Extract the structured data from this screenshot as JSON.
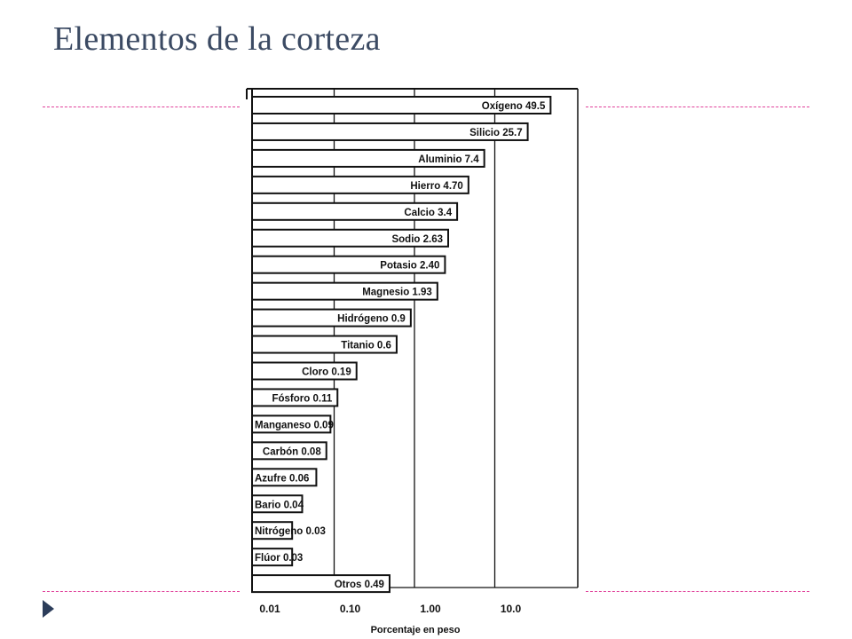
{
  "slide": {
    "title": "Elementos de la corteza",
    "accent_color": "#e0409a",
    "title_color": "#3b4a63",
    "bullet_color": "#2c3d5a"
  },
  "chart_data": {
    "type": "bar",
    "orientation": "horizontal",
    "xscale": "log",
    "xlim": [
      0.01,
      100
    ],
    "grid": true,
    "xlabel": "Porcentaje en peso",
    "xticks": [
      {
        "value": 0.01,
        "label": "0.01"
      },
      {
        "value": 0.1,
        "label": "0.10"
      },
      {
        "value": 1,
        "label": "1.00"
      },
      {
        "value": 10,
        "label": "10.0"
      }
    ],
    "bars": [
      {
        "name": "Oxígeno",
        "value": 49.5,
        "value_label": "49.5"
      },
      {
        "name": "Silicio",
        "value": 25.7,
        "value_label": "25.7"
      },
      {
        "name": "Aluminio",
        "value": 7.4,
        "value_label": "7.4"
      },
      {
        "name": "Hierro",
        "value": 4.7,
        "value_label": "4.70"
      },
      {
        "name": "Calcio",
        "value": 3.4,
        "value_label": "3.4"
      },
      {
        "name": "Sodio",
        "value": 2.63,
        "value_label": "2.63"
      },
      {
        "name": "Potasio",
        "value": 2.4,
        "value_label": "2.40"
      },
      {
        "name": "Magnesio",
        "value": 1.93,
        "value_label": "1.93"
      },
      {
        "name": "Hidrógeno",
        "value": 0.9,
        "value_label": "0.9"
      },
      {
        "name": "Titanio",
        "value": 0.6,
        "value_label": "0.6"
      },
      {
        "name": "Cloro",
        "value": 0.19,
        "value_label": "0.19"
      },
      {
        "name": "Fósforo",
        "value": 0.11,
        "value_label": "0.11"
      },
      {
        "name": "Manganeso",
        "value": 0.09,
        "value_label": "0.09"
      },
      {
        "name": "Carbón",
        "value": 0.08,
        "value_label": "0.08"
      },
      {
        "name": "Azufre",
        "value": 0.06,
        "value_label": "0.06"
      },
      {
        "name": "Bario",
        "value": 0.04,
        "value_label": "0.04"
      },
      {
        "name": "Nitrógeno",
        "value": 0.03,
        "value_label": "0.03"
      },
      {
        "name": "Flúor",
        "value": 0.03,
        "value_label": "0.03"
      },
      {
        "name": "Otros",
        "value": 0.49,
        "value_label": "0.49"
      }
    ]
  }
}
